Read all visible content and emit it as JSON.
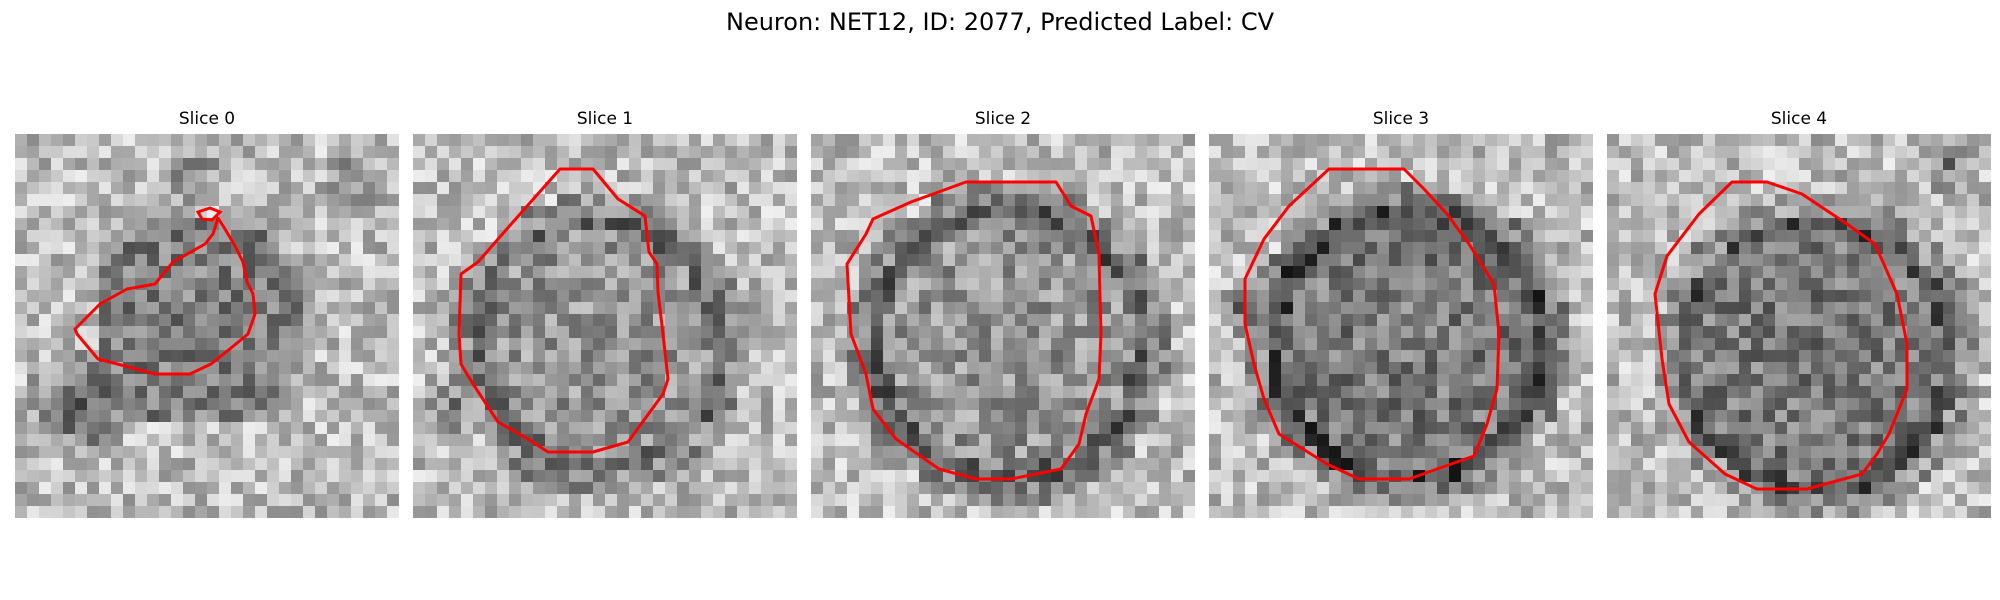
{
  "figure": {
    "title": "Neuron: NET12, ID: 2077, Predicted Label: CV"
  },
  "panels": [
    {
      "title": "Slice 0",
      "image": "grayscale-microscopy-patch",
      "contour_color": "#ff0000"
    },
    {
      "title": "Slice 1",
      "image": "grayscale-microscopy-patch",
      "contour_color": "#ff0000"
    },
    {
      "title": "Slice 2",
      "image": "grayscale-microscopy-patch",
      "contour_color": "#ff0000"
    },
    {
      "title": "Slice 3",
      "image": "grayscale-microscopy-patch",
      "contour_color": "#ff0000"
    },
    {
      "title": "Slice 4",
      "image": "grayscale-microscopy-patch",
      "contour_color": "#ff0000"
    }
  ]
}
